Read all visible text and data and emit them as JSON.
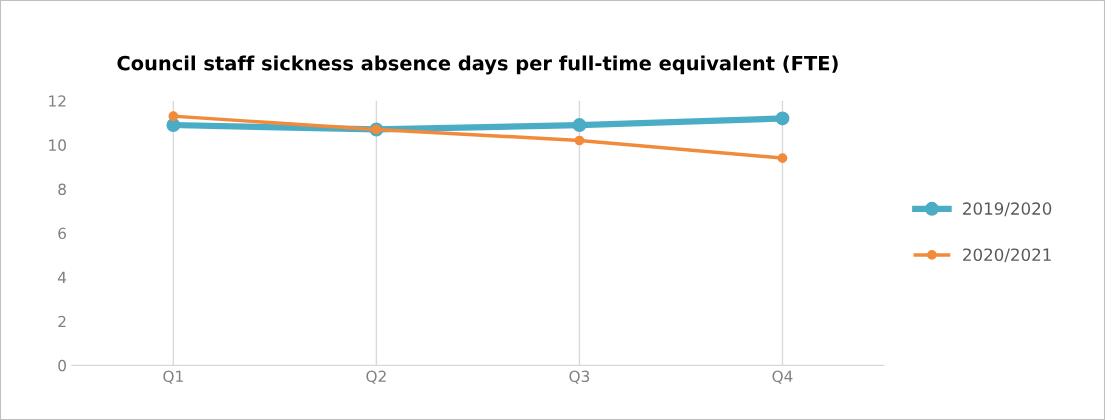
{
  "chart_data": {
    "type": "line",
    "title": "Council staff sickness absence days per full-time equivalent (FTE)",
    "categories": [
      "Q1",
      "Q2",
      "Q3",
      "Q4"
    ],
    "series": [
      {
        "name": "2019/2020",
        "color": "#4bacc6",
        "values": [
          10.9,
          10.7,
          10.9,
          11.2
        ]
      },
      {
        "name": "2020/2021",
        "color": "#f28a3b",
        "values": [
          11.3,
          10.7,
          10.2,
          9.4
        ]
      }
    ],
    "ylim": [
      0,
      12
    ],
    "yticks": [
      0,
      2,
      4,
      6,
      8,
      10,
      12
    ],
    "grid": "x",
    "legend": "right",
    "marker": "circle"
  }
}
